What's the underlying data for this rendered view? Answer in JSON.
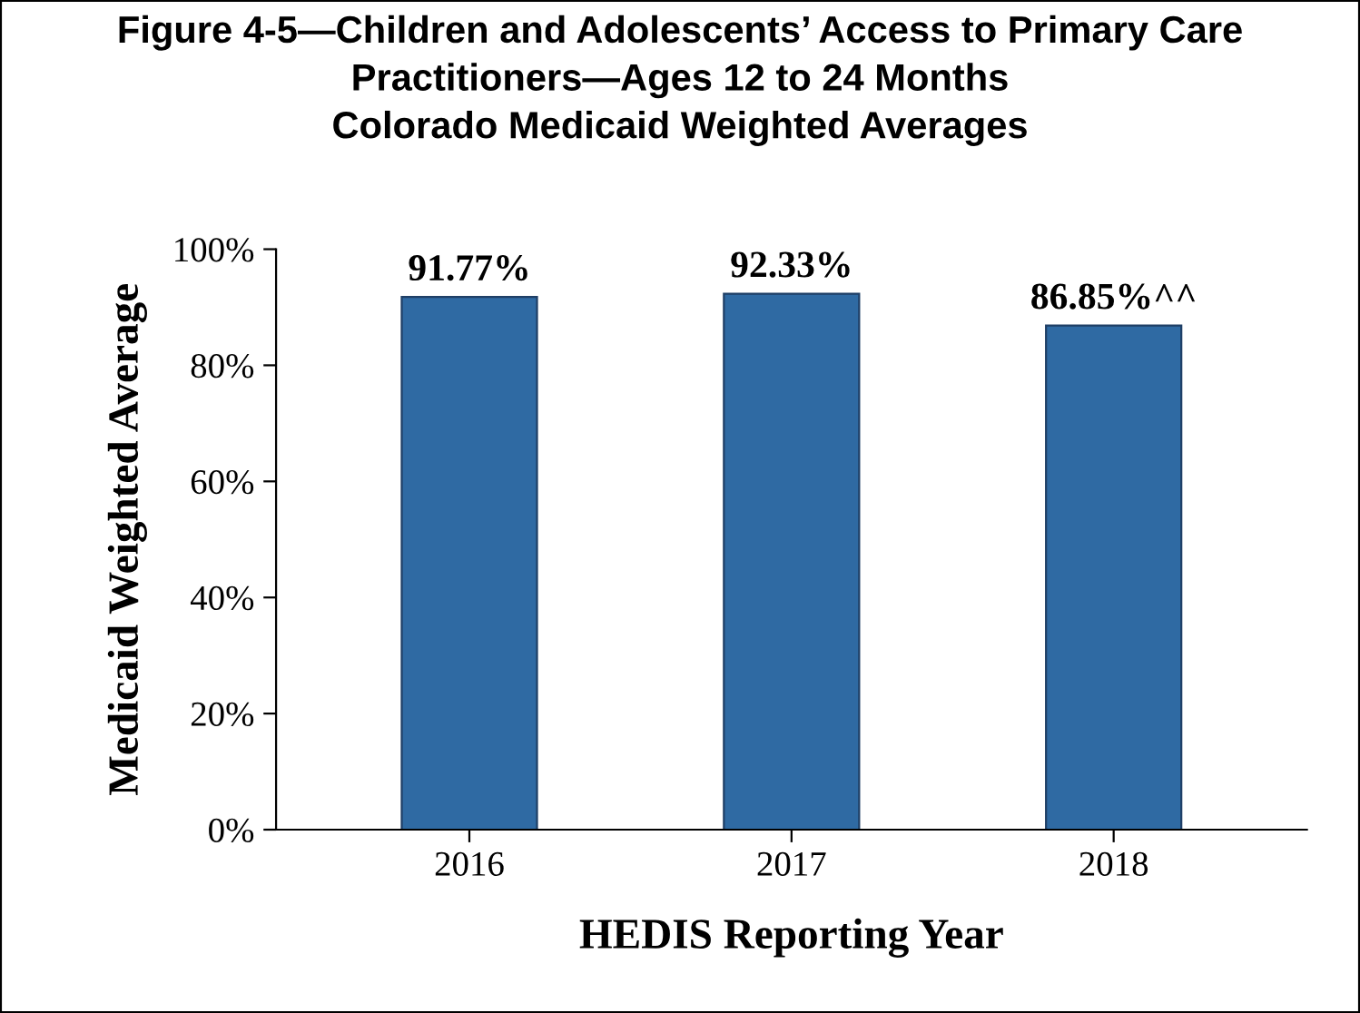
{
  "chart_data": {
    "type": "bar",
    "title": "Figure 4-5—Children and Adolescents’ Access to Primary Care\nPractitioners—Ages 12 to 24 Months\nColorado Medicaid Weighted Averages",
    "xlabel": "HEDIS Reporting Year",
    "ylabel": "Medicaid Weighted Average",
    "categories": [
      "2016",
      "2017",
      "2018"
    ],
    "values": [
      91.77,
      92.33,
      86.85
    ],
    "value_labels": [
      "91.77%",
      "92.33%",
      "86.85%^^"
    ],
    "color": "#2f6aa3",
    "ylim": [
      0,
      100
    ],
    "yticks": [
      {
        "value": 0,
        "label": "0%"
      },
      {
        "value": 20,
        "label": "20%"
      },
      {
        "value": 40,
        "label": "40%"
      },
      {
        "value": 60,
        "label": "60%"
      },
      {
        "value": 80,
        "label": "80%"
      },
      {
        "value": 100,
        "label": "100%"
      }
    ],
    "grid": false,
    "legend": false
  }
}
